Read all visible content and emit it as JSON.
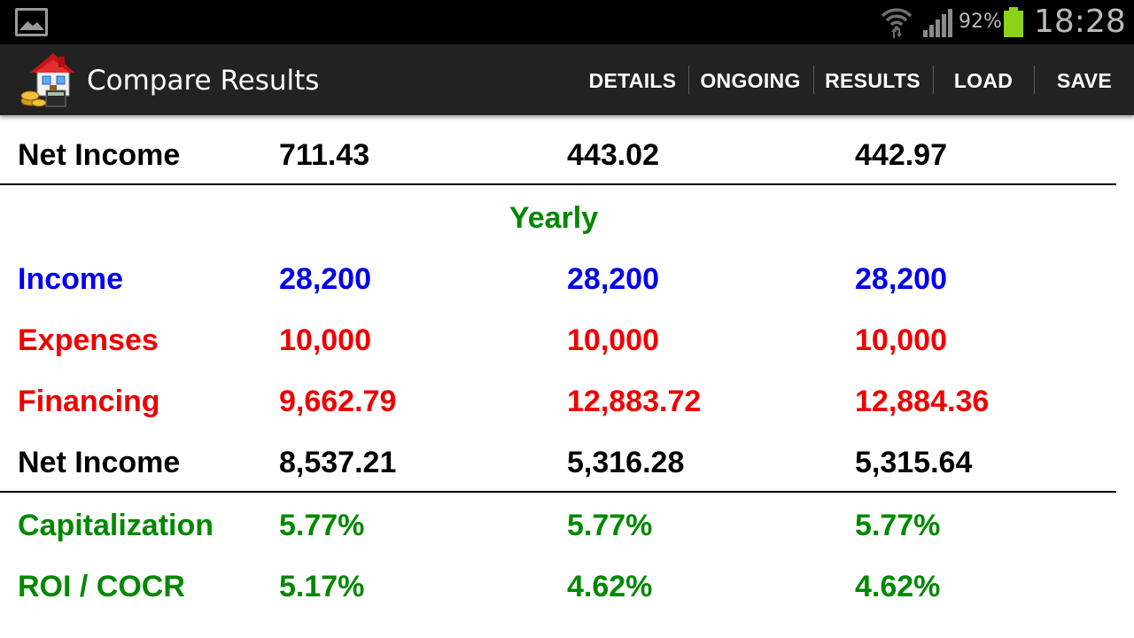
{
  "status_bar": {
    "gallery_icon": "gallery-icon",
    "wifi_icon": "wifi-icon",
    "signal_icon": "signal-icon",
    "battery_percent": "92%",
    "battery_level": 0.92,
    "clock": "18:28"
  },
  "action_bar": {
    "logo": "house-coins-logo",
    "title": "Compare Results",
    "menu": [
      "DETAILS",
      "ONGOING",
      "RESULTS",
      "LOAD",
      "SAVE"
    ]
  },
  "colors": {
    "black": "#000000",
    "blue": "#0000ee",
    "red": "#ee0000",
    "green": "#008800",
    "battery": "#8bd218"
  },
  "table": {
    "top_row": {
      "label": "Net Income",
      "values": [
        "711.43",
        "443.02",
        "442.97"
      ]
    },
    "section_title": "Yearly",
    "rows": [
      {
        "label": "Income",
        "values": [
          "28,200",
          "28,200",
          "28,200"
        ]
      },
      {
        "label": "Expenses",
        "values": [
          "10,000",
          "10,000",
          "10,000"
        ]
      },
      {
        "label": "Financing",
        "values": [
          "9,662.79",
          "12,883.72",
          "12,884.36"
        ]
      },
      {
        "label": "Net Income",
        "values": [
          "8,537.21",
          "5,316.28",
          "5,315.64"
        ]
      }
    ],
    "metrics": [
      {
        "label": "Capitalization",
        "values": [
          "5.77%",
          "5.77%",
          "5.77%"
        ]
      },
      {
        "label": "ROI / COCR",
        "values": [
          "5.17%",
          "4.62%",
          "4.62%"
        ]
      }
    ]
  }
}
